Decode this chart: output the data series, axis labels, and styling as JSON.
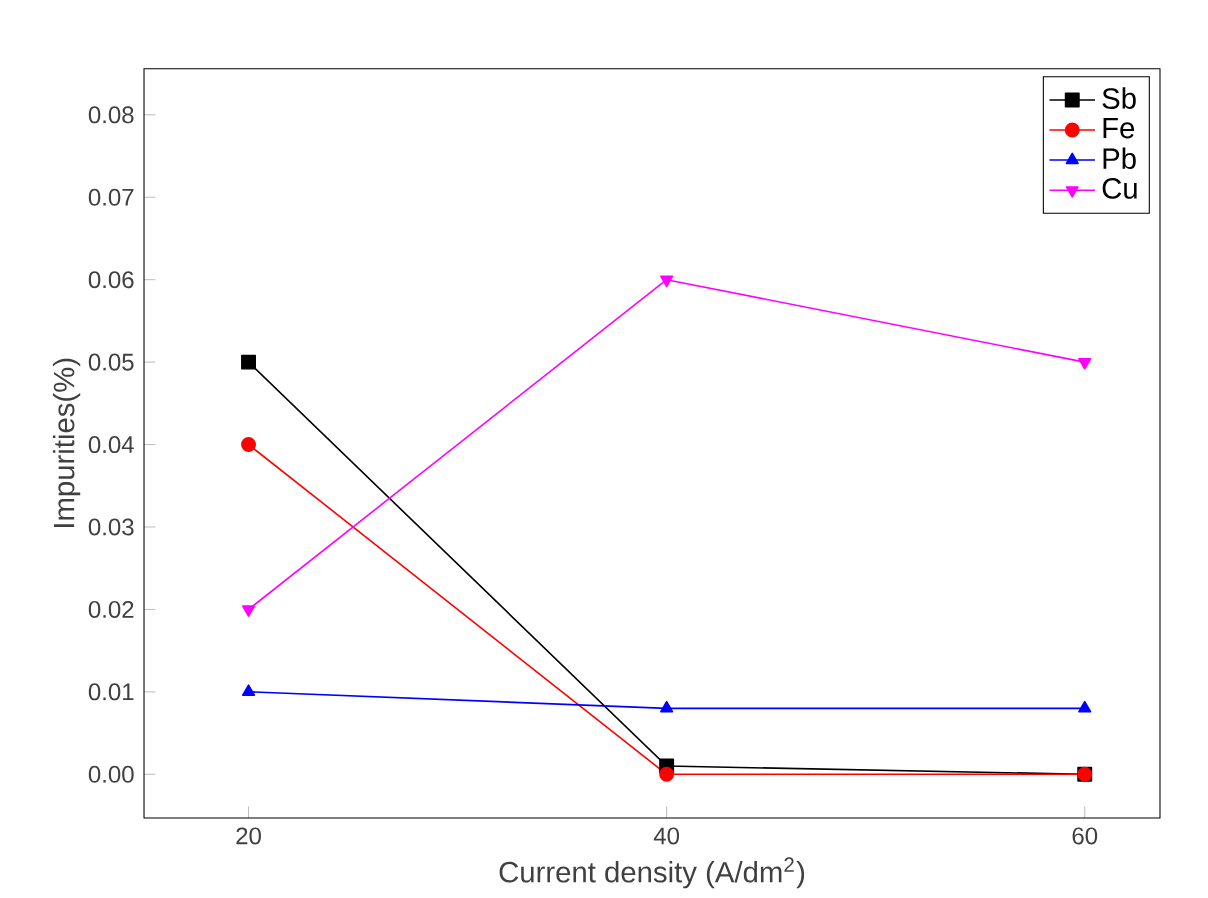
{
  "chart_data": {
    "type": "line",
    "xlabel": "Current density (A/dm$^{2}$)",
    "ylabel": "Impurities(%)",
    "x": [
      20,
      40,
      60
    ],
    "series": [
      {
        "name": "Sb",
        "color": "#000000",
        "marker": "square",
        "values": [
          0.05,
          0.001,
          0
        ]
      },
      {
        "name": "Fe",
        "color": "#ff0000",
        "marker": "circle",
        "values": [
          0.04,
          0,
          0
        ]
      },
      {
        "name": "Pb",
        "color": "#0000ff",
        "marker": "triangle",
        "values": [
          0.01,
          0.008,
          0.008
        ]
      },
      {
        "name": "Cu",
        "color": "#ff00ff",
        "marker": "triangle down",
        "values": [
          0.02,
          0.06,
          0.05
        ]
      }
    ],
    "xlim": [
      15,
      63.6
    ],
    "ylim": [
      -0.0053,
      0.0856
    ],
    "xticks": [
      20,
      40,
      60
    ],
    "yticks": [
      {
        "value": 0,
        "label": "0.00"
      },
      {
        "value": 0.01,
        "label": "0.01"
      },
      {
        "value": 0.02,
        "label": "0.02"
      },
      {
        "value": 0.03,
        "label": "0.03"
      },
      {
        "value": 0.04,
        "label": "0.04"
      },
      {
        "value": 0.05,
        "label": "0.05"
      },
      {
        "value": 0.06,
        "label": "0.06"
      },
      {
        "value": 0.07,
        "label": "0.07"
      },
      {
        "value": 0.08,
        "label": "0.08"
      }
    ],
    "grid": false,
    "legend": "top right",
    "line_style": "solid"
  }
}
